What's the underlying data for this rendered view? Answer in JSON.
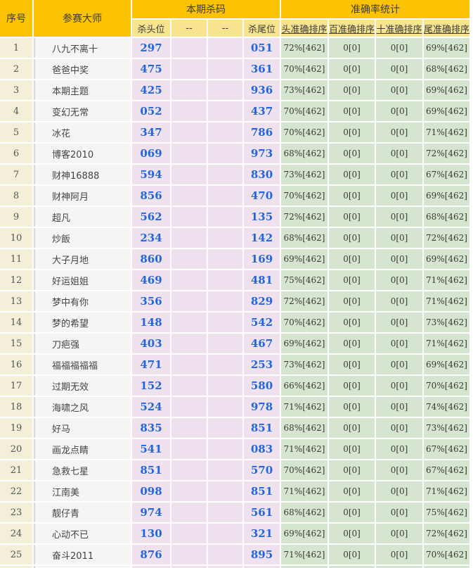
{
  "header": {
    "col_serial": "序号",
    "col_master": "参赛大师",
    "group_kill": "本期杀码",
    "group_accuracy": "准确率统计",
    "sub_kill": [
      "杀头位",
      "--",
      "--",
      "杀尾位"
    ],
    "sub_accuracy": [
      "头准确排序",
      "百准确排序",
      "十准确排序",
      "尾准确排序"
    ]
  },
  "colors": {
    "header_gold": "#FCC204",
    "subheader_yellow": "#F8E48F",
    "serial_cream": "#F3EFD8",
    "master_gray": "#F5F5F5",
    "kill_lavender": "#EFE2EE",
    "accuracy_green": "#D5E5CF",
    "number_blue": "#2166E0",
    "divider_gray": "#D9D9D9"
  },
  "partial_row_visible": true,
  "rows": [
    {
      "no": "1",
      "master": "八九不离十",
      "kills": [
        "297",
        "",
        "",
        "051"
      ],
      "accs": [
        "72%[462]",
        "0[0]",
        "0[0]",
        "69%[462]"
      ]
    },
    {
      "no": "2",
      "master": "爸爸中奖",
      "kills": [
        "475",
        "",
        "",
        "361"
      ],
      "accs": [
        "70%[462]",
        "0[0]",
        "0[0]",
        "68%[462]"
      ]
    },
    {
      "no": "3",
      "master": "本期主题",
      "kills": [
        "425",
        "",
        "",
        "936"
      ],
      "accs": [
        "73%[462]",
        "0[0]",
        "0[0]",
        "69%[462]"
      ]
    },
    {
      "no": "4",
      "master": "变幻无常",
      "kills": [
        "052",
        "",
        "",
        "437"
      ],
      "accs": [
        "70%[462]",
        "0[0]",
        "0[0]",
        "69%[462]"
      ]
    },
    {
      "no": "5",
      "master": "冰花",
      "kills": [
        "347",
        "",
        "",
        "786"
      ],
      "accs": [
        "70%[462]",
        "0[0]",
        "0[0]",
        "71%[462]"
      ]
    },
    {
      "no": "6",
      "master": "博客2010",
      "kills": [
        "069",
        "",
        "",
        "973"
      ],
      "accs": [
        "68%[462]",
        "0[0]",
        "0[0]",
        "72%[462]"
      ]
    },
    {
      "no": "7",
      "master": "财神16888",
      "kills": [
        "594",
        "",
        "",
        "830"
      ],
      "accs": [
        "73%[462]",
        "0[0]",
        "0[0]",
        "67%[462]"
      ]
    },
    {
      "no": "8",
      "master": "财神阿月",
      "kills": [
        "856",
        "",
        "",
        "470"
      ],
      "accs": [
        "70%[462]",
        "0[0]",
        "0[0]",
        "69%[462]"
      ]
    },
    {
      "no": "9",
      "master": "超凡",
      "kills": [
        "562",
        "",
        "",
        "135"
      ],
      "accs": [
        "72%[462]",
        "0[0]",
        "0[0]",
        "68%[462]"
      ]
    },
    {
      "no": "10",
      "master": "炒飯",
      "kills": [
        "234",
        "",
        "",
        "142"
      ],
      "accs": [
        "68%[462]",
        "0[0]",
        "0[0]",
        "72%[462]"
      ]
    },
    {
      "no": "11",
      "master": "大子月地",
      "kills": [
        "860",
        "",
        "",
        "169"
      ],
      "accs": [
        "69%[462]",
        "0[0]",
        "0[0]",
        "69%[462]"
      ]
    },
    {
      "no": "12",
      "master": "好运姐姐",
      "kills": [
        "469",
        "",
        "",
        "481"
      ],
      "accs": [
        "75%[462]",
        "0[0]",
        "0[0]",
        "71%[462]"
      ]
    },
    {
      "no": "13",
      "master": "梦中有你",
      "kills": [
        "356",
        "",
        "",
        "829"
      ],
      "accs": [
        "72%[462]",
        "0[0]",
        "0[0]",
        "71%[462]"
      ]
    },
    {
      "no": "14",
      "master": "梦的希望",
      "kills": [
        "148",
        "",
        "",
        "542"
      ],
      "accs": [
        "70%[462]",
        "0[0]",
        "0[0]",
        "73%[462]"
      ]
    },
    {
      "no": "15",
      "master": "刀疤强",
      "kills": [
        "403",
        "",
        "",
        "467"
      ],
      "accs": [
        "69%[462]",
        "0[0]",
        "0[0]",
        "71%[462]"
      ]
    },
    {
      "no": "16",
      "master": "福福福福福",
      "kills": [
        "471",
        "",
        "",
        "253"
      ],
      "accs": [
        "73%[462]",
        "0[0]",
        "0[0]",
        "69%[462]"
      ]
    },
    {
      "no": "17",
      "master": "过期无效",
      "kills": [
        "152",
        "",
        "",
        "580"
      ],
      "accs": [
        "66%[462]",
        "0[0]",
        "0[0]",
        "70%[462]"
      ]
    },
    {
      "no": "18",
      "master": "海啸之风",
      "kills": [
        "524",
        "",
        "",
        "978"
      ],
      "accs": [
        "71%[462]",
        "0[0]",
        "0[0]",
        "74%[462]"
      ]
    },
    {
      "no": "19",
      "master": "好马",
      "kills": [
        "835",
        "",
        "",
        "851"
      ],
      "accs": [
        "68%[462]",
        "0[0]",
        "0[0]",
        "73%[462]"
      ]
    },
    {
      "no": "20",
      "master": "画龙点睛",
      "kills": [
        "541",
        "",
        "",
        "083"
      ],
      "accs": [
        "71%[462]",
        "0[0]",
        "0[0]",
        "67%[462]"
      ]
    },
    {
      "no": "21",
      "master": "急救七星",
      "kills": [
        "851",
        "",
        "",
        "570"
      ],
      "accs": [
        "70%[462]",
        "0[0]",
        "0[0]",
        "67%[462]"
      ]
    },
    {
      "no": "22",
      "master": "江南美",
      "kills": [
        "098",
        "",
        "",
        "851"
      ],
      "accs": [
        "71%[462]",
        "0[0]",
        "0[0]",
        "71%[462]"
      ]
    },
    {
      "no": "23",
      "master": "靓仔青",
      "kills": [
        "974",
        "",
        "",
        "561"
      ],
      "accs": [
        "68%[462]",
        "0[0]",
        "0[0]",
        "75%[462]"
      ]
    },
    {
      "no": "24",
      "master": "心动不已",
      "kills": [
        "130",
        "",
        "",
        "321"
      ],
      "accs": [
        "69%[462]",
        "0[0]",
        "0[0]",
        "72%[462]"
      ]
    },
    {
      "no": "25",
      "master": "奋斗2011",
      "kills": [
        "876",
        "",
        "",
        "895"
      ],
      "accs": [
        "71%[462]",
        "0[0]",
        "0[0]",
        "70%[462]"
      ]
    }
  ]
}
